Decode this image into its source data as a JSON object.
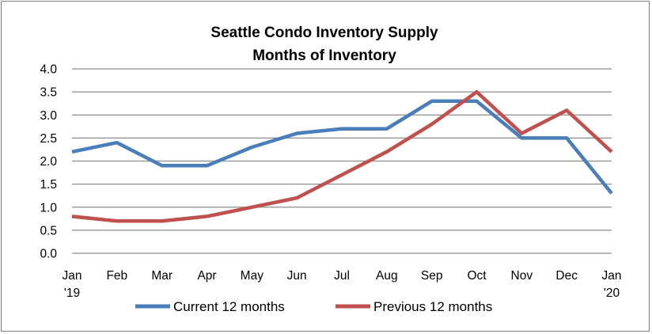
{
  "chart_data": {
    "type": "line",
    "title": "Seattle Condo Inventory Supply",
    "subtitle": "Months of Inventory",
    "xlabel": "",
    "ylabel": "",
    "categories": [
      "Jan '19",
      "Feb",
      "Mar",
      "Apr",
      "May",
      "Jun",
      "Jul",
      "Aug",
      "Sep",
      "Oct",
      "Nov",
      "Dec",
      "Jan '20"
    ],
    "x_tick_lines": [
      [
        "Jan",
        "'19"
      ],
      [
        "Feb"
      ],
      [
        "Mar"
      ],
      [
        "Apr"
      ],
      [
        "May"
      ],
      [
        "Jun"
      ],
      [
        "Jul"
      ],
      [
        "Aug"
      ],
      [
        "Sep"
      ],
      [
        "Oct"
      ],
      [
        "Nov"
      ],
      [
        "Dec"
      ],
      [
        "Jan",
        "'20"
      ]
    ],
    "y_ticks": [
      "0.0",
      "0.5",
      "1.0",
      "1.5",
      "2.0",
      "2.5",
      "3.0",
      "3.5",
      "4.0"
    ],
    "ylim": [
      0,
      4
    ],
    "grid": "horizontal",
    "legend_position": "bottom",
    "series": [
      {
        "name": "Current 12 months",
        "color": "#4a7ebb",
        "values": [
          2.2,
          2.4,
          1.9,
          1.9,
          2.3,
          2.6,
          2.7,
          2.7,
          3.3,
          3.3,
          2.5,
          2.5,
          1.3
        ]
      },
      {
        "name": "Previous 12 months",
        "color": "#c0504d",
        "values": [
          0.8,
          0.7,
          0.7,
          0.8,
          1.0,
          1.2,
          1.7,
          2.2,
          2.8,
          3.5,
          2.6,
          3.1,
          2.2
        ]
      }
    ]
  }
}
